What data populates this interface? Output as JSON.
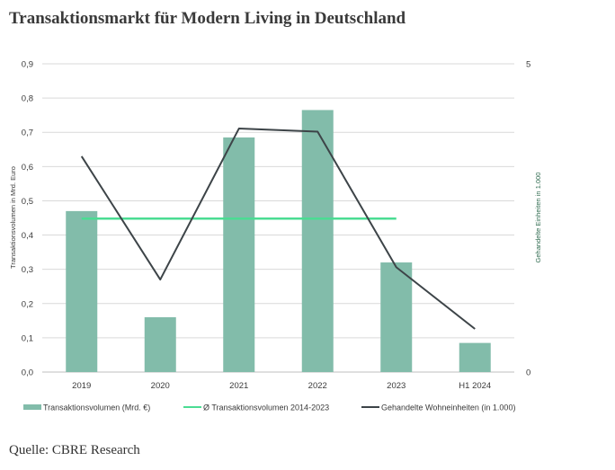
{
  "title": "Transaktionsmarkt für Modern Living in Deutschland",
  "source": "Quelle: CBRE Research",
  "colors": {
    "bar": "#82bcaa",
    "avg_line": "#4bdc93",
    "units_line": "#3d4448",
    "grid": "#d9d9d9",
    "axis_text": "#3a3a3a",
    "right_axis_text": "#2f6b4f"
  },
  "chart_data": {
    "type": "bar",
    "categories": [
      "2019",
      "2020",
      "2021",
      "2022",
      "2023",
      "H1 2024"
    ],
    "ylabel": "Transaktionsvolumen in Mrd. Euro",
    "y2label": "Gehandelte Einheiten in 1.000",
    "ylim": [
      0,
      0.9
    ],
    "y2lim": [
      0,
      5
    ],
    "y_ticks": [
      "0,0",
      "0,1",
      "0,2",
      "0,3",
      "0,4",
      "0,5",
      "0,6",
      "0,7",
      "0,8",
      "0,9"
    ],
    "y2_ticks": [
      "0",
      "5"
    ],
    "grid": true,
    "legend_position": "bottom",
    "series": [
      {
        "name": "Transaktionsvolumen (Mrd. €)",
        "kind": "bar",
        "axis": "left",
        "values": [
          0.47,
          0.16,
          0.685,
          0.765,
          0.32,
          0.085
        ]
      },
      {
        "name": "Ø Transaktionsvolumen 2014-2023",
        "kind": "line",
        "axis": "left",
        "values": [
          0.448,
          0.448,
          0.448,
          0.448,
          0.448,
          null
        ]
      },
      {
        "name": "Gehandelte Wohneinheiten (in 1.000)",
        "kind": "line",
        "axis": "right",
        "values": [
          3.5,
          1.5,
          3.95,
          3.9,
          1.7,
          0.7
        ]
      }
    ]
  }
}
